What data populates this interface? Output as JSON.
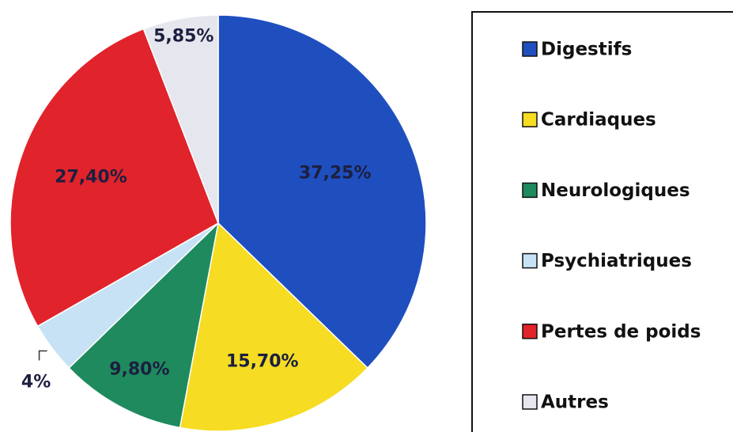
{
  "chart_data": {
    "type": "pie",
    "categories": [
      "Digestifs",
      "Cardiaques",
      "Neurologiques",
      "Psychiatriques",
      "Pertes de poids",
      "Autres"
    ],
    "values": [
      37.25,
      15.7,
      9.8,
      4,
      27.4,
      5.85
    ],
    "value_labels": [
      "37,25%",
      "15,70%",
      "9,80%",
      "4%",
      "27,40%",
      "5,85%"
    ],
    "colors": [
      "#1f4fbf",
      "#f6dc22",
      "#1e8a5e",
      "#c8e2f5",
      "#e1232b",
      "#e6e6ee"
    ],
    "legend": "right"
  }
}
